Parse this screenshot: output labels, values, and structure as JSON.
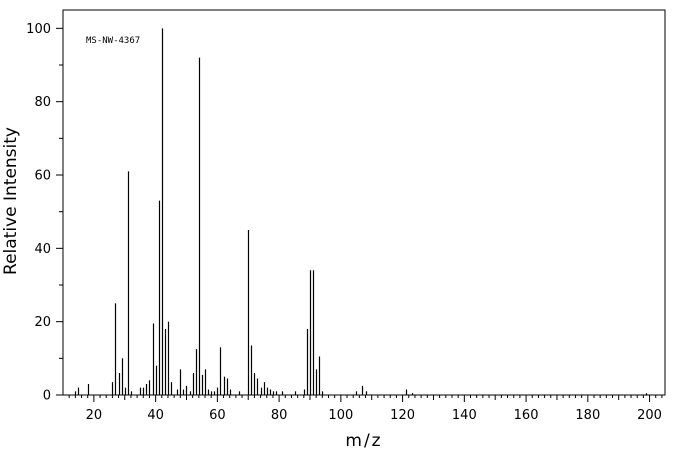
{
  "chart_data": {
    "type": "bar",
    "annotation": "MS-NW-4367",
    "xlabel": "m/z",
    "ylabel": "Relative Intensity",
    "xlim": [
      10,
      205
    ],
    "ylim": [
      0,
      105
    ],
    "x_major_ticks": [
      20,
      40,
      60,
      80,
      100,
      120,
      140,
      160,
      180,
      200
    ],
    "x_tick_labels": [
      "20",
      "40",
      "60",
      "80",
      "100",
      "120",
      "140",
      "160",
      "180",
      "200"
    ],
    "y_major_ticks": [
      0,
      20,
      40,
      60,
      80,
      100
    ],
    "y_tick_labels": [
      "0",
      "20",
      "40",
      "60",
      "80",
      "100"
    ],
    "grid": false,
    "series": [
      {
        "x": [
          14,
          15,
          18,
          26,
          27,
          28,
          29,
          30,
          31,
          32,
          35,
          36,
          37,
          38,
          39,
          40,
          41,
          42,
          43,
          44,
          45,
          47,
          48,
          49,
          50,
          51,
          52,
          53,
          54,
          55,
          56,
          57,
          58,
          59,
          60,
          61,
          62,
          63,
          64,
          67,
          70,
          71,
          72,
          73,
          74,
          75,
          76,
          77,
          78,
          79,
          81,
          85,
          88,
          89,
          90,
          91,
          92,
          93,
          94,
          105,
          107,
          108,
          121,
          123,
          199
        ],
        "y": [
          1,
          2,
          3,
          3.5,
          25,
          6,
          10,
          2,
          61,
          1,
          2,
          2,
          3,
          4,
          19.5,
          8,
          53,
          100,
          18,
          20,
          3.5,
          1.5,
          7,
          1.5,
          2.5,
          1,
          6,
          12.5,
          92,
          5.5,
          7,
          1.5,
          1,
          1,
          2,
          13,
          5,
          4.5,
          1.5,
          1,
          45,
          13.5,
          6,
          4.5,
          2,
          3.5,
          2,
          1.5,
          1,
          1,
          1,
          1,
          1.5,
          18,
          34,
          34,
          7,
          10.5,
          1,
          1,
          2.5,
          1,
          1.5,
          0.5,
          0.5
        ]
      }
    ]
  }
}
